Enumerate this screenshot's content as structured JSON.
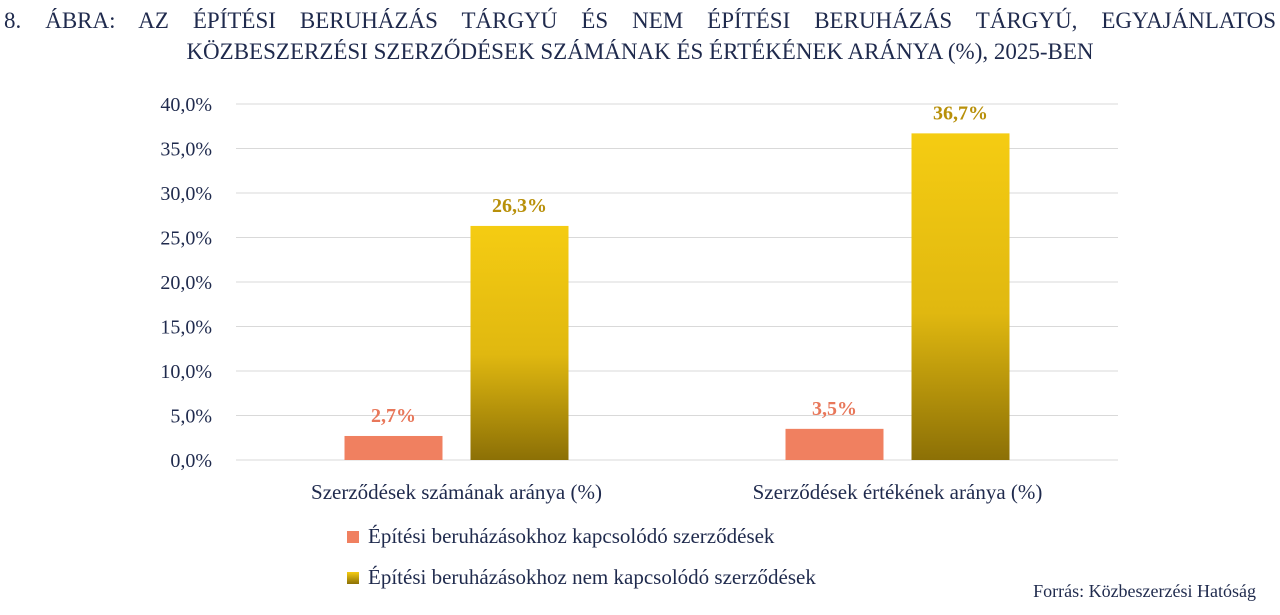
{
  "figure_title": {
    "line1": "8.  ÁBRA: AZ ÉPÍTÉSI BERUHÁZÁS TÁRGYÚ ÉS NEM ÉPÍTÉSI BERUHÁZÁS TÁRGYÚ, EGYAJÁNLATOS",
    "line2": "KÖZBESZERZÉSI SZERZŐDÉSEK SZÁMÁNAK ÉS ÉRTÉKÉNEK ARÁNYA (%), 2025-BEN"
  },
  "source": "Forrás: Közbeszerzési Hatóság",
  "colors": {
    "series1": "#f08060",
    "series2_top": "#f5cc12",
    "series2_bottom": "#8c7006",
    "label1": "#e8775a",
    "label2": "#b8900a",
    "grid": "#d9d9d9",
    "text": "#1f2a4d"
  },
  "chart_data": {
    "type": "bar",
    "categories": [
      "Szerződések számának aránya (%)",
      "Szerződések értékének aránya (%)"
    ],
    "series": [
      {
        "name": "Építési beruházásokhoz kapcsolódó szerződések",
        "values": [
          2.7,
          3.5
        ],
        "labels": [
          "2,7%",
          "3,5%"
        ]
      },
      {
        "name": "Építési beruházásokhoz nem kapcsolódó szerződések",
        "values": [
          26.3,
          36.7
        ],
        "labels": [
          "26,3%",
          "36,7%"
        ]
      }
    ],
    "ylim": [
      0,
      40
    ],
    "yticks": [
      "0,0%",
      "5,0%",
      "10,0%",
      "15,0%",
      "20,0%",
      "25,0%",
      "30,0%",
      "35,0%",
      "40,0%"
    ],
    "grid": true,
    "legend_position": "bottom"
  }
}
